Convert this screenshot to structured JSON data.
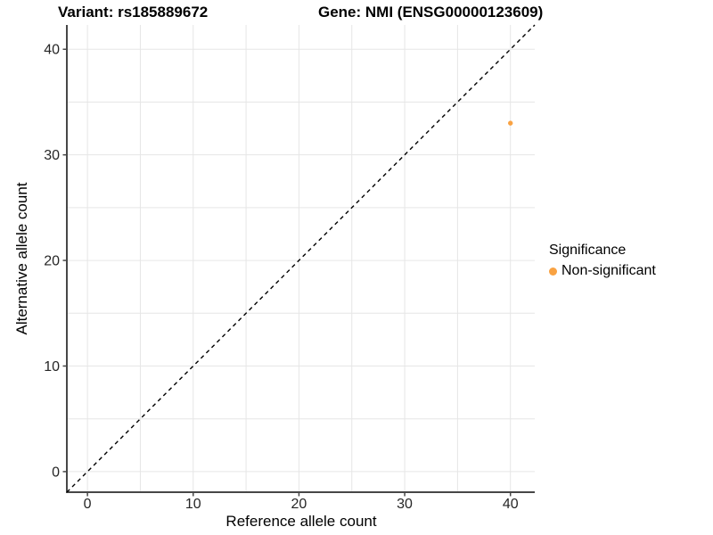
{
  "titles": {
    "variant": "Variant: rs185889672",
    "gene": "Gene: NMI (ENSG00000123609)"
  },
  "chart_data": {
    "type": "scatter",
    "xlabel": "Reference allele count",
    "ylabel": "Alternative allele count",
    "xlim": [
      -1.95,
      42.3
    ],
    "ylim": [
      -1.95,
      42.3
    ],
    "x_ticks": [
      0,
      10,
      20,
      30,
      40
    ],
    "y_ticks": [
      0,
      10,
      20,
      30,
      40
    ],
    "gridline_step": 5,
    "grid": "on",
    "identity_line": {
      "style": "dashed",
      "from": -1.95,
      "to": 42.3,
      "slope": 1,
      "intercept": 0
    },
    "points": [
      {
        "x": 40,
        "y": 33,
        "series": "Non-significant"
      }
    ],
    "legend": {
      "title": "Significance",
      "position": "right",
      "entries": [
        {
          "label": "Non-significant",
          "color": "#F9A242"
        }
      ]
    },
    "colors": {
      "point": "#F9A242",
      "gridline": "#E6E6E6",
      "axis_line": "#474747",
      "tick_text": "#262626",
      "identity_line": "#000000",
      "background": "#FFFFFF"
    }
  }
}
